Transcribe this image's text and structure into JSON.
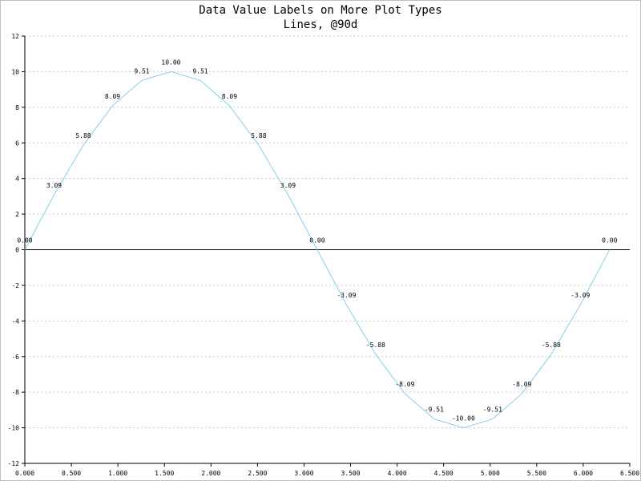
{
  "chart_data": {
    "type": "line",
    "title": "Data Value Labels on More Plot Types",
    "subtitle": "Lines, @90d",
    "xlabel": "",
    "ylabel": "",
    "xlim": [
      0,
      6.5
    ],
    "ylim": [
      -12,
      12
    ],
    "x_ticks": [
      "0.000",
      "0.500",
      "1.000",
      "1.500",
      "2.000",
      "2.500",
      "3.000",
      "3.500",
      "4.000",
      "4.500",
      "5.000",
      "5.500",
      "6.000",
      "6.500"
    ],
    "y_ticks": [
      "12",
      "10",
      "8",
      "6",
      "4",
      "2",
      "0",
      "-2",
      "-4",
      "-6",
      "-8",
      "-10",
      "-12"
    ],
    "grid": "horizontal dashed",
    "series": [
      {
        "color": "#87ceeb",
        "x": [
          0,
          0.3142,
          0.6283,
          0.9425,
          1.2566,
          1.5708,
          1.885,
          2.1991,
          2.5133,
          2.8274,
          3.1416,
          3.4558,
          3.7699,
          4.0841,
          4.3982,
          4.7124,
          5.0265,
          5.3407,
          5.6549,
          5.969,
          6.2832
        ],
        "values": [
          0.0,
          3.09,
          5.88,
          8.09,
          9.51,
          10.0,
          9.51,
          8.09,
          5.88,
          3.09,
          0.0,
          -3.09,
          -5.88,
          -8.09,
          -9.51,
          -10.0,
          -9.51,
          -8.09,
          -5.88,
          -3.09,
          0.0
        ],
        "labels": [
          "0.00",
          "3.09",
          "5.88",
          "8.09",
          "9.51",
          "10.00",
          "9.51",
          "8.09",
          "5.88",
          "3.09",
          "0.00",
          "-3.09",
          "-5.88",
          "-8.09",
          "-9.51",
          "-10.00",
          "-9.51",
          "-8.09",
          "-5.88",
          "-3.09",
          "0.00"
        ]
      }
    ]
  }
}
